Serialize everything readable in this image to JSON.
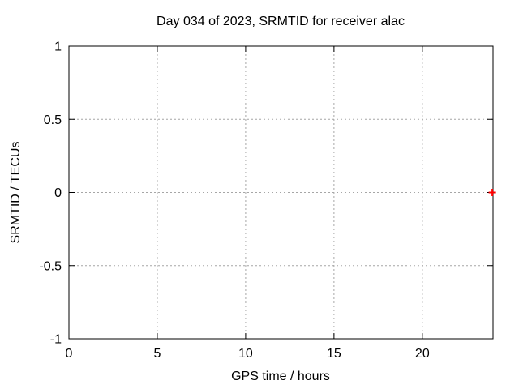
{
  "window": {
    "background": "#ffffff"
  },
  "chart_data": {
    "type": "scatter",
    "title": "Day 034 of 2023, SRMTID for receiver alac",
    "xlabel": "GPS time / hours",
    "ylabel": "SRMTID / TECUs",
    "xlim": [
      0,
      24
    ],
    "ylim": [
      -1,
      1
    ],
    "grid": true,
    "legend": "none",
    "x_ticks": {
      "values": [
        0,
        5,
        10,
        15,
        20
      ],
      "labels": [
        "0",
        "5",
        "10",
        "15",
        "20"
      ]
    },
    "y_ticks": {
      "values": [
        1,
        0.5,
        0,
        -0.5,
        -1
      ],
      "labels": [
        "1",
        "0.5",
        "0",
        "-0.5",
        "-1"
      ]
    },
    "grid_x_values": [
      5,
      10,
      15,
      20
    ],
    "grid_y_values": [
      0.5,
      0,
      -0.5
    ],
    "series": [
      {
        "name": "SRMTID",
        "marker": "plus",
        "color": "#ff0000",
        "points": [
          {
            "x": 23.96,
            "y": 0.0
          }
        ]
      }
    ],
    "colors": {
      "background": "#ffffff",
      "border": "#000000",
      "grid": "#a6a6a6",
      "text": "#000000"
    }
  }
}
